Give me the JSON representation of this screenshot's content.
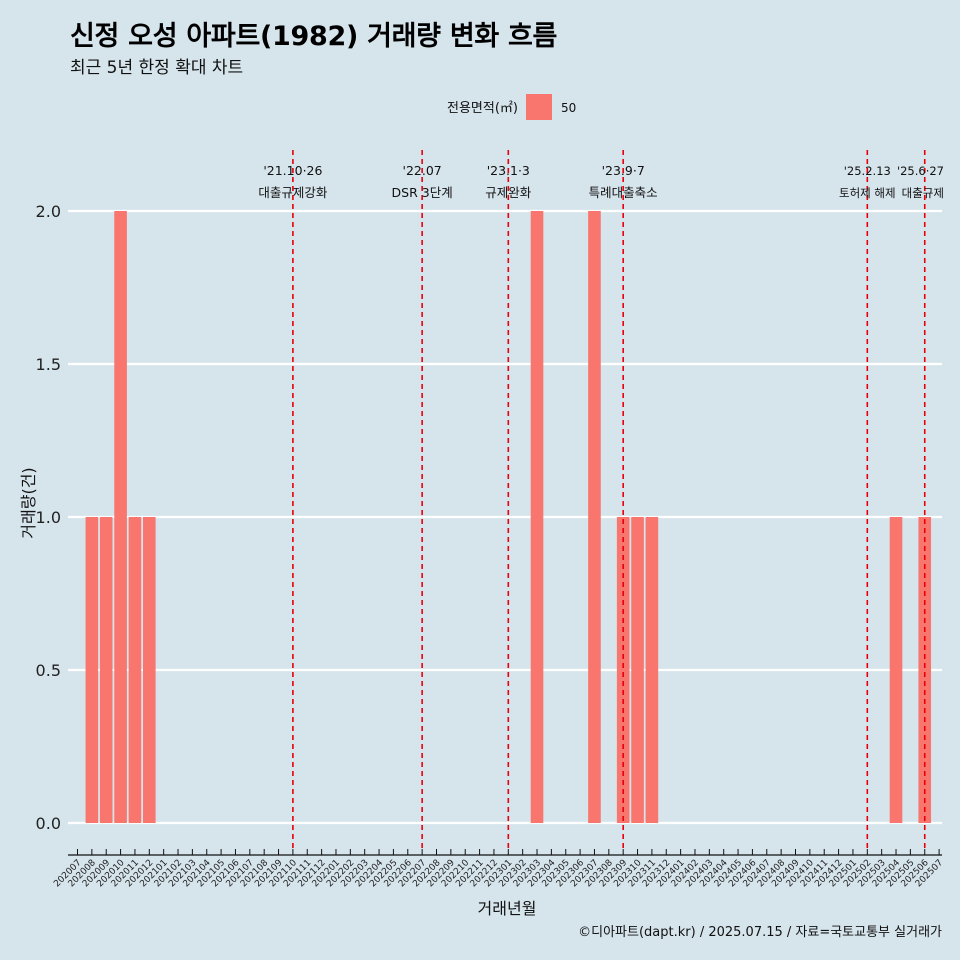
{
  "title": "신정 오성 아파트(1982) 거래량 변화 흐름",
  "subtitle": "최근 5년 한정 확대 차트",
  "caption": "©디아파트(dapt.kr) / 2025.07.15 / 자료=국토교통부 실거래가",
  "colors": {
    "background": "#d6e4ec",
    "bar": "#f8766d",
    "grid": "#ffffff",
    "event_line": "#e8000b"
  },
  "chart_data": {
    "type": "bar",
    "legend": {
      "title": "전용면적(㎡)",
      "entries": [
        "50"
      ],
      "position": "top"
    },
    "xlabel": "거래년월",
    "ylabel": "거래량(건)",
    "ylim": [
      0,
      2
    ],
    "yticks": [
      "0.0",
      "0.5",
      "1.0",
      "1.5",
      "2.0"
    ],
    "grid": true,
    "categories": [
      "202007",
      "202008",
      "202009",
      "202010",
      "202011",
      "202012",
      "202101",
      "202102",
      "202103",
      "202104",
      "202105",
      "202106",
      "202107",
      "202108",
      "202109",
      "202110",
      "202111",
      "202112",
      "202201",
      "202202",
      "202203",
      "202204",
      "202205",
      "202206",
      "202207",
      "202208",
      "202209",
      "202210",
      "202211",
      "202212",
      "202301",
      "202302",
      "202303",
      "202304",
      "202305",
      "202306",
      "202307",
      "202308",
      "202309",
      "202310",
      "202311",
      "202312",
      "202401",
      "202402",
      "202403",
      "202404",
      "202405",
      "202406",
      "202407",
      "202408",
      "202409",
      "202410",
      "202411",
      "202412",
      "202501",
      "202502",
      "202503",
      "202504",
      "202505",
      "202506",
      "202507"
    ],
    "series": [
      {
        "name": "50",
        "points": [
          {
            "x": "202008",
            "y": 1
          },
          {
            "x": "202009",
            "y": 1
          },
          {
            "x": "202010",
            "y": 2
          },
          {
            "x": "202011",
            "y": 1
          },
          {
            "x": "202012",
            "y": 1
          },
          {
            "x": "202104",
            "y": 0
          },
          {
            "x": "202303",
            "y": 0
          },
          {
            "x": "202303",
            "y": 2
          },
          {
            "x": "202307",
            "y": 0
          },
          {
            "x": "202307",
            "y": 2
          },
          {
            "x": "202309",
            "y": 1
          },
          {
            "x": "202310",
            "y": 1
          },
          {
            "x": "202311",
            "y": 1
          },
          {
            "x": "202504",
            "y": 0
          },
          {
            "x": "202504",
            "y": 1
          },
          {
            "x": "202506",
            "y": 0
          },
          {
            "x": "202506",
            "y": 1
          }
        ]
      }
    ],
    "annotations": [
      {
        "x": "202110",
        "date": "'21.10·26",
        "label": "대출규제강화"
      },
      {
        "x": "202207",
        "date": "'22.07",
        "label": "DSR 3단계"
      },
      {
        "x": "202301",
        "date": "'23.1·3",
        "label": "규제완화"
      },
      {
        "x": "202309",
        "date": "'23.9·7",
        "label": "특례대출축소"
      },
      {
        "x": "202502",
        "date": "'25.2.13",
        "label": "토허제 해제"
      },
      {
        "x": "202506",
        "date": "'25.6·27",
        "label": "대출규제"
      }
    ]
  }
}
